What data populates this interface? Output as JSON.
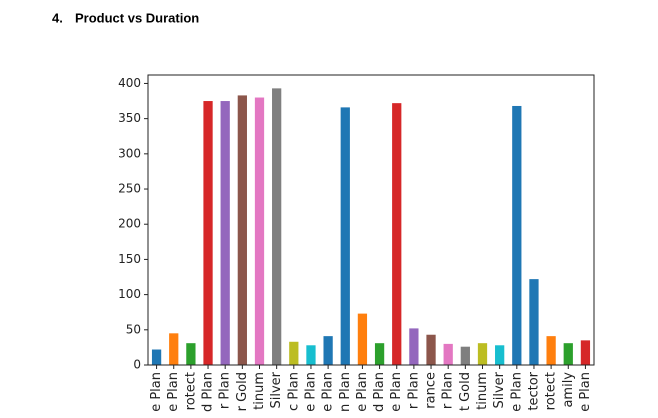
{
  "heading": {
    "number": "4.",
    "text": "Product vs Duration"
  },
  "chart_data": {
    "type": "bar",
    "categories": [
      "e Plan",
      "e Plan",
      "rotect",
      "d Plan",
      "r Plan",
      "r Gold",
      "tinum",
      "Silver",
      "c Plan",
      "e Plan",
      "e Plan",
      "n Plan",
      "e Plan",
      "d Plan",
      "e Plan",
      "r Plan",
      "rance",
      "r Plan",
      "t Gold",
      "tinum",
      "Silver",
      "e Plan",
      "tector",
      "rotect",
      "amily",
      "e Plan"
    ],
    "values": [
      22,
      45,
      31,
      375,
      375,
      383,
      380,
      393,
      33,
      28,
      41,
      366,
      73,
      31,
      372,
      52,
      43,
      30,
      26,
      31,
      28,
      368,
      122,
      41,
      31,
      35
    ],
    "colors": [
      "#1f77b4",
      "#ff7f0e",
      "#2ca02c",
      "#d62728",
      "#9467bd",
      "#8c564b",
      "#e377c2",
      "#7f7f7f",
      "#bcbd22",
      "#17becf",
      "#1f77b4",
      "#1f77b4",
      "#ff7f0e",
      "#2ca02c",
      "#d62728",
      "#9467bd",
      "#8c564b",
      "#e377c2",
      "#7f7f7f",
      "#bcbd22",
      "#17becf",
      "#1f77b4",
      "#1f77b4",
      "#ff7f0e",
      "#2ca02c",
      "#d62728"
    ],
    "ylim": [
      0,
      412
    ],
    "yticks": [
      0,
      50,
      100,
      150,
      200,
      250,
      300,
      350,
      400
    ]
  }
}
